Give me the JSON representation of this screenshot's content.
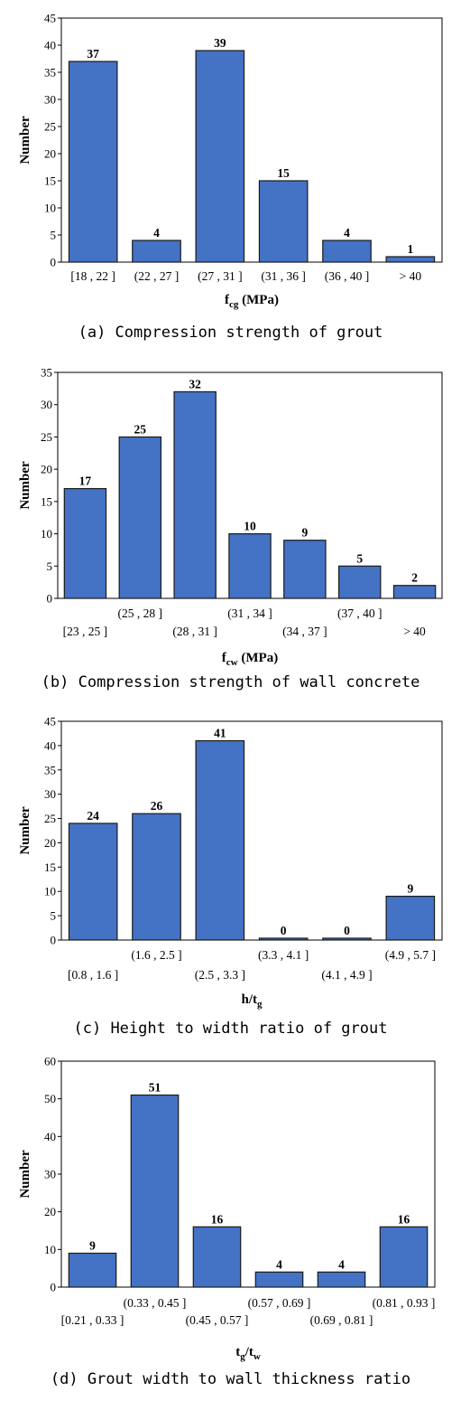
{
  "chart_data": [
    {
      "type": "bar",
      "categories": [
        "[18 , 22 ]",
        "(22 , 27 ]",
        "(27 , 31 ]",
        "(31 , 36 ]",
        "(36 , 40 ]",
        "> 40"
      ],
      "values": [
        37,
        4,
        39,
        15,
        4,
        1
      ],
      "ylabel": "Number",
      "xlabel": "f",
      "xlabel_sub": "cg",
      "xlabel_suffix": " (MPa)",
      "ylim": [
        0,
        45
      ],
      "yticks": [
        0,
        5,
        10,
        15,
        20,
        25,
        30,
        35,
        40,
        45
      ],
      "staggered_labels": false,
      "caption": "(a) Compression strength of grout",
      "bar_color": "#4472C4"
    },
    {
      "type": "bar",
      "categories": [
        "[23 , 25 ]",
        "(25 , 28 ]",
        "(28 , 31 ]",
        "(31 , 34 ]",
        "(34 , 37 ]",
        "(37 , 40 ]",
        "> 40"
      ],
      "values": [
        17,
        25,
        32,
        10,
        9,
        5,
        2
      ],
      "ylabel": "Number",
      "xlabel": "f",
      "xlabel_sub": "cw",
      "xlabel_suffix": " (MPa)",
      "ylim": [
        0,
        35
      ],
      "yticks": [
        0,
        5,
        10,
        15,
        20,
        25,
        30,
        35
      ],
      "staggered_labels": true,
      "caption": "(b) Compression strength of wall concrete",
      "bar_color": "#4472C4"
    },
    {
      "type": "bar",
      "categories": [
        "[0.8 , 1.6 ]",
        "(1.6 , 2.5 ]",
        "(2.5 , 3.3 ]",
        "(3.3 , 4.1 ]",
        "(4.1 , 4.9 ]",
        "(4.9 , 5.7 ]"
      ],
      "values": [
        24,
        26,
        41,
        0,
        0,
        9
      ],
      "ylabel": "Number",
      "xlabel": "h/t",
      "xlabel_sub": "g",
      "xlabel_suffix": "",
      "ylim": [
        0,
        45
      ],
      "yticks": [
        0,
        5,
        10,
        15,
        20,
        25,
        30,
        35,
        40,
        45
      ],
      "staggered_labels": true,
      "caption": "(c) Height to width ratio of grout",
      "bar_color": "#4472C4"
    },
    {
      "type": "bar",
      "categories": [
        "[0.21 , 0.33 ]",
        "(0.33 , 0.45 ]",
        "(0.45 , 0.57 ]",
        "(0.57 , 0.69 ]",
        "(0.69 , 0.81 ]",
        "(0.81 , 0.93 ]"
      ],
      "values": [
        9,
        51,
        16,
        4,
        4,
        16
      ],
      "ylabel": "Number",
      "xlabel": "t",
      "xlabel_sub": "g",
      "xlabel_mid": "/t",
      "xlabel_sub2": "w",
      "xlabel_suffix": "",
      "ylim": [
        0,
        60
      ],
      "yticks": [
        0,
        10,
        20,
        30,
        40,
        50,
        60
      ],
      "staggered_labels": true,
      "caption": "(d) Grout width to wall thickness ratio",
      "bar_color": "#4472C4"
    }
  ]
}
